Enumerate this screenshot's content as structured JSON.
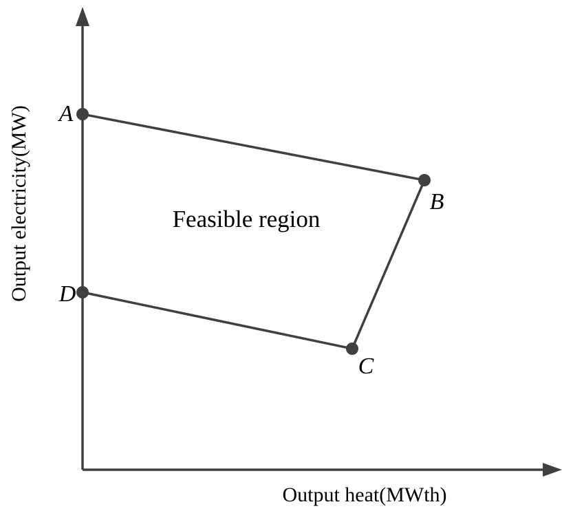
{
  "x_axis_label": "Output heat(MWth)",
  "y_axis_label": "Output electricity(MW)",
  "region_label": "Feasible region",
  "nodes": [
    {
      "label": "A"
    },
    {
      "label": "B"
    },
    {
      "label": "C"
    },
    {
      "label": "D"
    }
  ]
}
